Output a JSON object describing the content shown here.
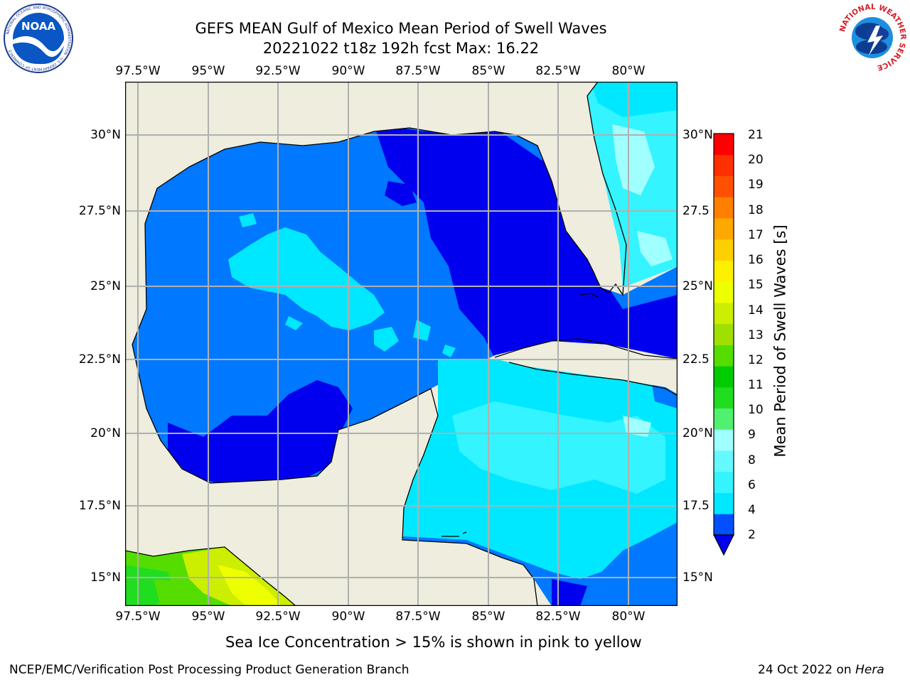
{
  "header": {
    "title_line1": "GEFS MEAN Gulf of Mexico Mean Period of Swell Waves",
    "title_line2": "20221022 t18z 192h fcst   Max: 16.22"
  },
  "logos": {
    "noaa_text": "NOAA",
    "noaa_ring_text": "NATIONAL OCEANIC AND ATMOSPHERIC ADMINISTRATION · U.S. DEPARTMENT OF COMMERCE",
    "nws_ring_text": "NATIONAL WEATHER SERVICE"
  },
  "map": {
    "lon_ticks": [
      "97.5°W",
      "95°W",
      "92.5°W",
      "90°W",
      "87.5°W",
      "85°W",
      "82.5°W",
      "80°W"
    ],
    "lat_ticks_left": [
      "30°N",
      "27.5°N",
      "25°N",
      "22.5°N",
      "20°N",
      "17.5°N",
      "15°N"
    ],
    "lat_ticks_right": [
      "30°N",
      "27.5",
      "25°N",
      "22.5",
      "20°N",
      "17.5",
      "15°N"
    ],
    "colors": {
      "land": "#eeedde",
      "grid": "#b0b0b0",
      "coast": "#000000",
      "missing": "#ffffff"
    }
  },
  "colorbar": {
    "label": "Mean Period of Swell Waves [s]",
    "ticks": [
      "21",
      "20",
      "19",
      "18",
      "17",
      "16",
      "15",
      "14",
      "13",
      "12",
      "11",
      "10",
      "9",
      "8",
      "6",
      "4",
      "2"
    ],
    "colors_bottom_to_top": [
      "#0050ff",
      "#00e8ff",
      "#33f4ff",
      "#66f8ff",
      "#a0ffff",
      "#50f070",
      "#20dd20",
      "#00cc00",
      "#55dd00",
      "#a0e000",
      "#ccee00",
      "#eeff00",
      "#fff000",
      "#ffd000",
      "#ffa800",
      "#ff8000",
      "#ff5000",
      "#ff3000",
      "#ff0000"
    ],
    "extend_color": "#0000ee"
  },
  "footer": {
    "sea_ice_note": "Sea Ice Concentration > 15% is shown in pink to yellow",
    "left_credit": "NCEP/EMC/Verification Post Processing Product Generation Branch",
    "date_text": "24 Oct 2022 on ",
    "machine": "Hera"
  }
}
